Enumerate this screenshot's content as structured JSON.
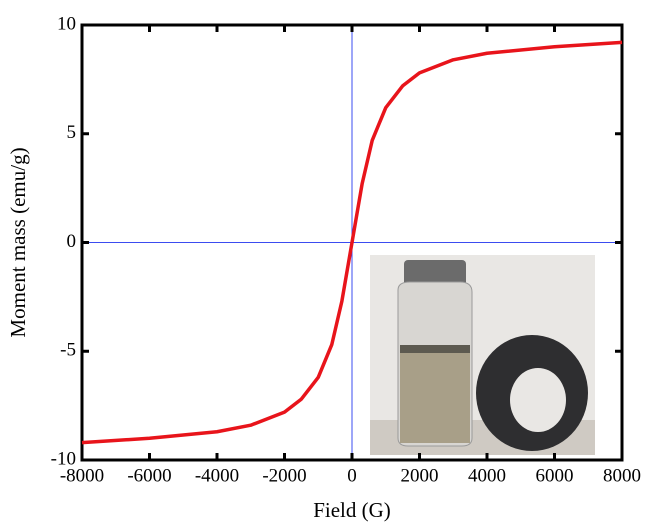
{
  "chart_data": {
    "type": "line",
    "x_label": "Field (G)",
    "y_label": "Moment mass (emu/g)",
    "x": [
      -8000,
      -6000,
      -4000,
      -3000,
      -2000,
      -1500,
      -1000,
      -600,
      -300,
      0,
      300,
      600,
      1000,
      1500,
      2000,
      3000,
      4000,
      6000,
      8000
    ],
    "values": [
      -9.2,
      -9.0,
      -8.7,
      -8.4,
      -7.8,
      -7.2,
      -6.2,
      -4.7,
      -2.7,
      0,
      2.7,
      4.7,
      6.2,
      7.2,
      7.8,
      8.4,
      8.7,
      9.0,
      9.2
    ],
    "color": "#e8141b",
    "crosshair_color": "#3b4cf0",
    "xlim": [
      -8000,
      8000
    ],
    "xticks": [
      -8000,
      -6000,
      -4000,
      -2000,
      0,
      2000,
      4000,
      6000,
      8000
    ],
    "ylim": [
      -10,
      10
    ],
    "yticks": [
      -10,
      -5,
      0,
      5,
      10
    ]
  }
}
